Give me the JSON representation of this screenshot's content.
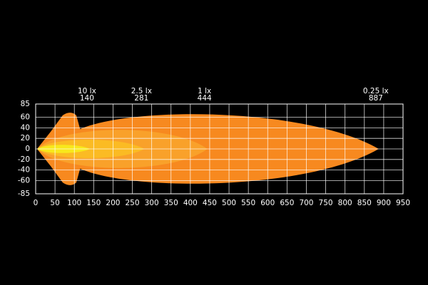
{
  "chart_data": {
    "type": "isolux",
    "xlim": [
      0,
      950
    ],
    "ylim": [
      -85,
      85
    ],
    "xticks": [
      0,
      50,
      100,
      150,
      200,
      250,
      300,
      350,
      400,
      450,
      500,
      550,
      600,
      650,
      700,
      750,
      800,
      850,
      900,
      950
    ],
    "yticks": [
      85,
      60,
      40,
      20,
      0,
      -20,
      -40,
      -60,
      -85
    ],
    "grid": true,
    "contours": [
      {
        "label": "0.25 lx",
        "distance": 887,
        "half_width": 75,
        "color": "#f7891f"
      },
      {
        "label": "1 lx",
        "distance": 444,
        "half_width": 37,
        "color": "#f9a12a"
      },
      {
        "label": "2.5 lx",
        "distance": 281,
        "half_width": 18,
        "color": "#fbbb23"
      },
      {
        "label": "10 lx",
        "distance": 140,
        "half_width": 8,
        "color": "#f8e81c"
      }
    ]
  }
}
